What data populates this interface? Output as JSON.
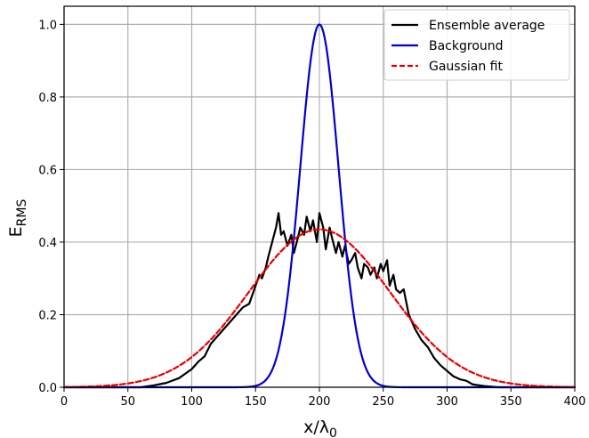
{
  "chart_data": {
    "type": "line",
    "title": "",
    "xlabel": "x/λ0",
    "xlabel_main": "x/λ",
    "xlabel_sub": "0",
    "ylabel": "E_RMS",
    "ylabel_main": "E",
    "ylabel_sub": "RMS",
    "xlim": [
      0,
      400
    ],
    "ylim": [
      0,
      1.05
    ],
    "xticks": [
      0,
      50,
      100,
      150,
      200,
      250,
      300,
      350,
      400
    ],
    "yticks": [
      0.0,
      0.2,
      0.4,
      0.6,
      0.8,
      1.0
    ],
    "xtick_labels": [
      "0",
      "50",
      "100",
      "150",
      "200",
      "250",
      "300",
      "350",
      "400"
    ],
    "ytick_labels": [
      "0.0",
      "0.2",
      "0.4",
      "0.6",
      "0.8",
      "1.0"
    ],
    "grid": true,
    "legend_position": "top-right",
    "series": [
      {
        "name": "Ensemble average",
        "color": "#000000",
        "style": "solid",
        "x": [
          0,
          60,
          70,
          80,
          90,
          100,
          105,
          110,
          115,
          120,
          125,
          130,
          135,
          140,
          145,
          150,
          153,
          155,
          158,
          160,
          163,
          166,
          168,
          170,
          172,
          175,
          178,
          180,
          183,
          185,
          188,
          190,
          193,
          195,
          198,
          200,
          203,
          205,
          208,
          210,
          213,
          215,
          218,
          220,
          223,
          225,
          228,
          230,
          233,
          235,
          238,
          240,
          243,
          245,
          248,
          250,
          253,
          255,
          258,
          260,
          263,
          266,
          270,
          275,
          280,
          285,
          290,
          295,
          300,
          305,
          310,
          315,
          320,
          330,
          340,
          400
        ],
        "y": [
          0.0,
          0.0,
          0.005,
          0.012,
          0.025,
          0.05,
          0.07,
          0.085,
          0.12,
          0.14,
          0.16,
          0.18,
          0.2,
          0.22,
          0.23,
          0.28,
          0.31,
          0.3,
          0.33,
          0.36,
          0.4,
          0.44,
          0.48,
          0.42,
          0.43,
          0.39,
          0.42,
          0.37,
          0.41,
          0.44,
          0.42,
          0.47,
          0.43,
          0.46,
          0.4,
          0.48,
          0.44,
          0.38,
          0.44,
          0.41,
          0.37,
          0.4,
          0.36,
          0.39,
          0.34,
          0.35,
          0.37,
          0.33,
          0.3,
          0.34,
          0.33,
          0.31,
          0.33,
          0.3,
          0.34,
          0.32,
          0.35,
          0.28,
          0.31,
          0.27,
          0.26,
          0.27,
          0.2,
          0.16,
          0.13,
          0.11,
          0.08,
          0.06,
          0.045,
          0.03,
          0.022,
          0.018,
          0.008,
          0.003,
          0.0,
          0.0
        ]
      },
      {
        "name": "Background",
        "color": "#0000cc",
        "style": "solid",
        "function": "gaussian",
        "amplitude": 1.0,
        "center": 200,
        "sigma": 15
      },
      {
        "name": "Gaussian fit",
        "color": "#e60000",
        "style": "dashed",
        "function": "gaussian",
        "amplitude": 0.435,
        "center": 200,
        "sigma": 55
      }
    ]
  }
}
